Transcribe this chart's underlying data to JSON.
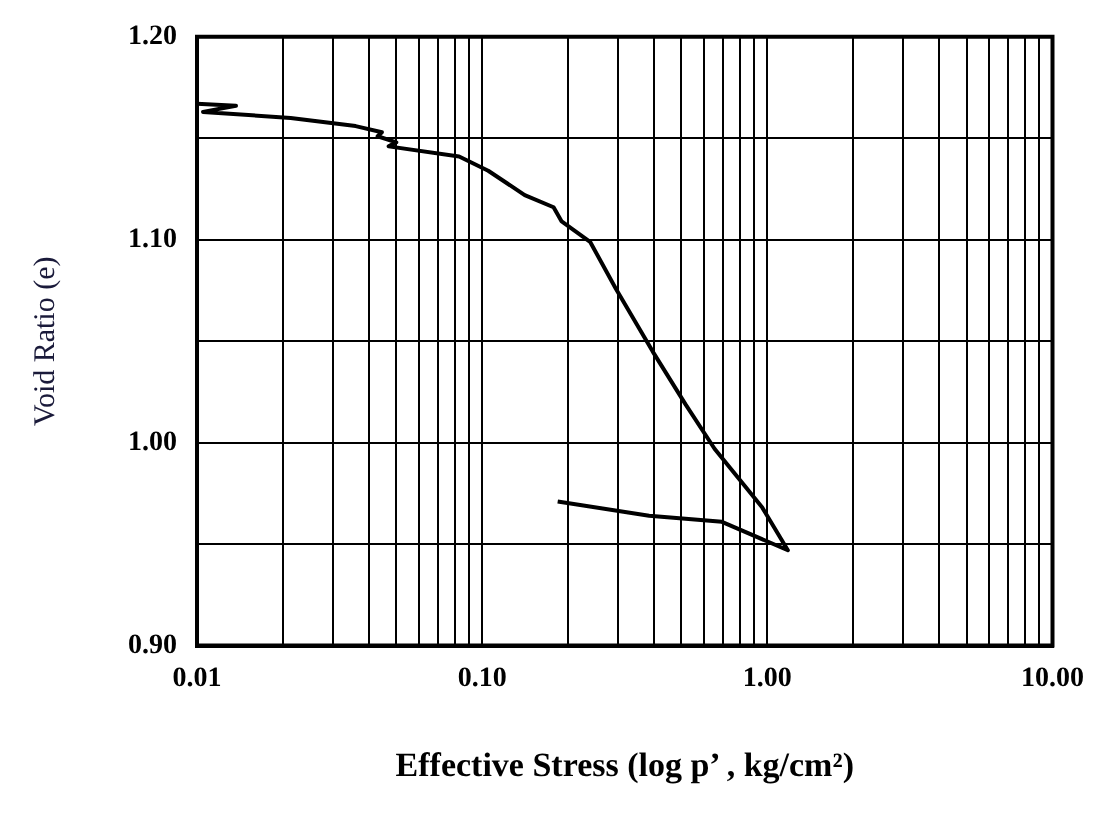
{
  "chart_data": {
    "type": "line",
    "xlabel": "Effective Stress (log p’ , kg/cm²)",
    "ylabel": "Void Ratio (e)",
    "log": "x",
    "grid": true,
    "legend": false,
    "marker": "none",
    "line_style": "solid",
    "xlim": [
      0.01,
      10
    ],
    "ylim": [
      0.9,
      1.2
    ],
    "xticks": [
      {
        "value": 0.01,
        "label": "0.01"
      },
      {
        "value": 0.02,
        "label": null
      },
      {
        "value": 0.03,
        "label": null
      },
      {
        "value": 0.04,
        "label": null
      },
      {
        "value": 0.05,
        "label": null
      },
      {
        "value": 0.06,
        "label": null
      },
      {
        "value": 0.07,
        "label": null
      },
      {
        "value": 0.08,
        "label": null
      },
      {
        "value": 0.09,
        "label": null
      },
      {
        "value": 0.1,
        "label": "0.10"
      },
      {
        "value": 0.2,
        "label": null
      },
      {
        "value": 0.3,
        "label": null
      },
      {
        "value": 0.4,
        "label": null
      },
      {
        "value": 0.5,
        "label": null
      },
      {
        "value": 0.6,
        "label": null
      },
      {
        "value": 0.7,
        "label": null
      },
      {
        "value": 0.8,
        "label": null
      },
      {
        "value": 0.9,
        "label": null
      },
      {
        "value": 1,
        "label": "1.00"
      },
      {
        "value": 2,
        "label": null
      },
      {
        "value": 3,
        "label": null
      },
      {
        "value": 4,
        "label": null
      },
      {
        "value": 5,
        "label": null
      },
      {
        "value": 6,
        "label": null
      },
      {
        "value": 7,
        "label": null
      },
      {
        "value": 8,
        "label": null
      },
      {
        "value": 9,
        "label": null
      },
      {
        "value": 10,
        "label": "10.00"
      }
    ],
    "yticks": [
      {
        "value": 0.9,
        "label": "0.90"
      },
      {
        "value": 0.95,
        "label": null
      },
      {
        "value": 1.0,
        "label": "1.00"
      },
      {
        "value": 1.05,
        "label": null
      },
      {
        "value": 1.1,
        "label": "1.10"
      },
      {
        "value": 1.15,
        "label": null
      },
      {
        "value": 1.2,
        "label": "1.20"
      }
    ],
    "series": [
      {
        "color": "#000000",
        "x": [
          0.01,
          0.0137,
          0.0105,
          0.0213,
          0.036,
          0.0445,
          0.043,
          0.05,
          0.047,
          0.083,
          0.105,
          0.141,
          0.178,
          0.19,
          0.239,
          0.294,
          0.396,
          0.516,
          0.653,
          0.96,
          1.18,
          0.693,
          0.385,
          0.184
        ],
        "values": [
          1.167,
          1.166,
          1.163,
          1.16,
          1.156,
          1.153,
          1.151,
          1.148,
          1.146,
          1.141,
          1.134,
          1.122,
          1.116,
          1.109,
          1.099,
          1.076,
          1.045,
          1.019,
          0.997,
          0.968,
          0.947,
          0.961,
          0.964,
          0.971
        ]
      }
    ]
  }
}
